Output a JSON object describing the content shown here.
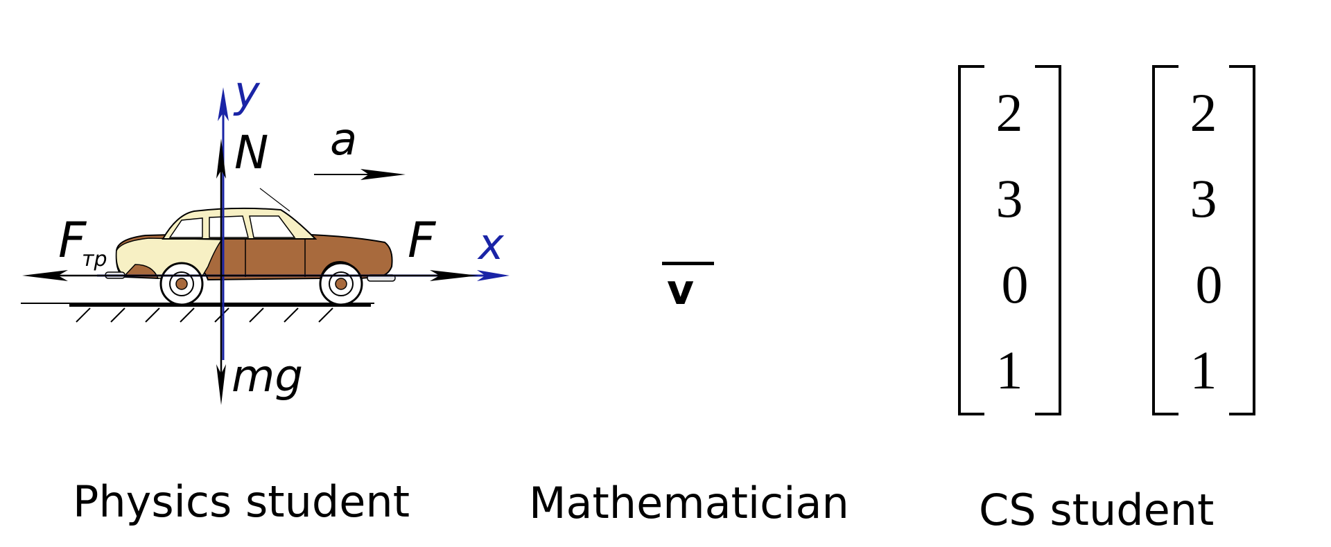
{
  "panels": {
    "physics": {
      "caption": "Physics student",
      "labels": {
        "y_axis": "y",
        "x_axis": "x",
        "normal_force": "N",
        "acceleration": "a",
        "friction_force": "F",
        "friction_subscript": "тр",
        "applied_force": "F",
        "weight": "mg"
      }
    },
    "math": {
      "caption": "Mathematician",
      "symbol": "v"
    },
    "cs": {
      "caption": "CS student",
      "matrix_left": [
        "2",
        "3",
        "0",
        "1"
      ],
      "matrix_right": [
        "2",
        "3",
        "0",
        "1"
      ]
    }
  },
  "colors": {
    "axis_blue": "#1a24a6",
    "car_brown": "#a86a3d",
    "car_cream": "#f7f0c4"
  }
}
